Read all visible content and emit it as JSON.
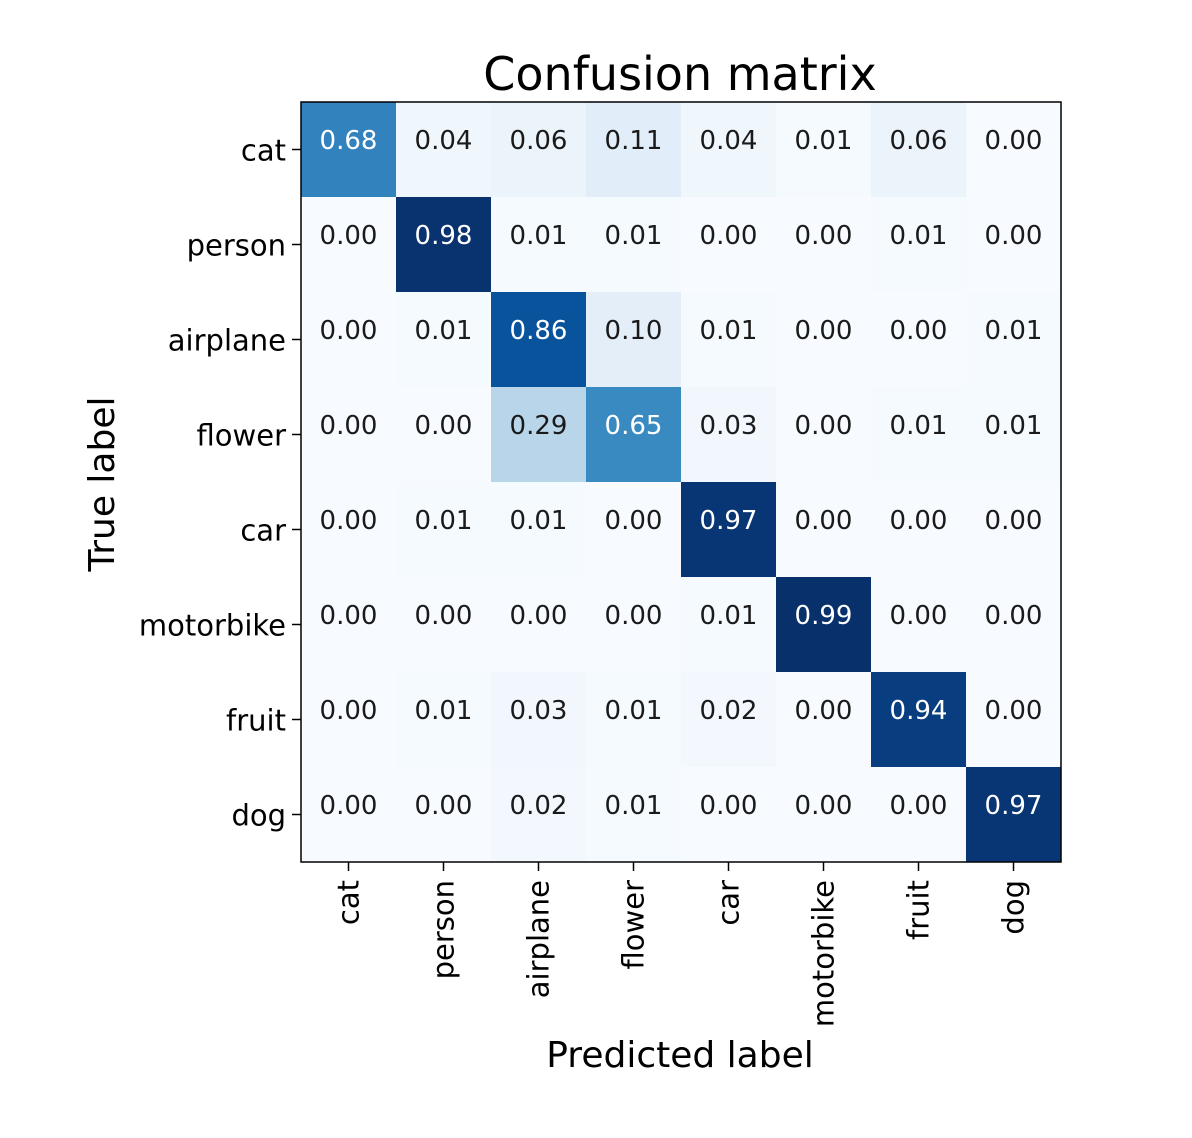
{
  "chart_data": {
    "type": "heatmap",
    "title": "Confusion matrix",
    "xlabel": "Predicted label",
    "ylabel": "True label",
    "x_categories": [
      "cat",
      "person",
      "airplane",
      "flower",
      "car",
      "motorbike",
      "fruit",
      "dog"
    ],
    "y_categories": [
      "cat",
      "person",
      "airplane",
      "flower",
      "car",
      "motorbike",
      "fruit",
      "dog"
    ],
    "values": [
      [
        0.68,
        0.04,
        0.06,
        0.11,
        0.04,
        0.01,
        0.06,
        0.0
      ],
      [
        0.0,
        0.98,
        0.01,
        0.01,
        0.0,
        0.0,
        0.01,
        0.0
      ],
      [
        0.0,
        0.01,
        0.86,
        0.1,
        0.01,
        0.0,
        0.0,
        0.01
      ],
      [
        0.0,
        0.0,
        0.29,
        0.65,
        0.03,
        0.0,
        0.01,
        0.01
      ],
      [
        0.0,
        0.01,
        0.01,
        0.0,
        0.97,
        0.0,
        0.0,
        0.0
      ],
      [
        0.0,
        0.0,
        0.0,
        0.0,
        0.01,
        0.99,
        0.0,
        0.0
      ],
      [
        0.0,
        0.01,
        0.03,
        0.01,
        0.02,
        0.0,
        0.94,
        0.0
      ],
      [
        0.0,
        0.0,
        0.02,
        0.01,
        0.0,
        0.0,
        0.0,
        0.97
      ]
    ],
    "value_format": "2 decimals",
    "colormap": "Blues",
    "colors": {
      "low": "#f7fbff",
      "high": "#08306b",
      "text_dark": "#1a1a1a",
      "text_light": "#ffffff",
      "axis": "#000000"
    },
    "grid": false,
    "colorbar": false
  }
}
